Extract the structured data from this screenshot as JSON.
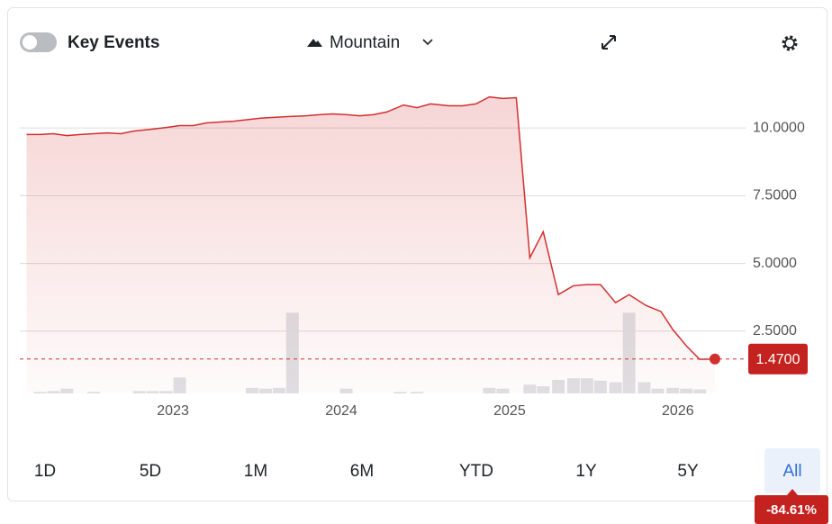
{
  "controls": {
    "toggle_label": "Key Events",
    "chart_style": "Mountain"
  },
  "chart_data": {
    "type": "area",
    "color": "#d32f2f",
    "x": [
      2022.13,
      2022.21,
      2022.29,
      2022.37,
      2022.45,
      2022.53,
      2022.61,
      2022.69,
      2022.77,
      2022.88,
      2022.96,
      2023.04,
      2023.12,
      2023.2,
      2023.36,
      2023.52,
      2023.68,
      2023.79,
      2023.87,
      2023.95,
      2024.03,
      2024.11,
      2024.19,
      2024.27,
      2024.37,
      2024.45,
      2024.53,
      2024.64,
      2024.72,
      2024.8,
      2024.88,
      2024.96,
      2025.04,
      2025.12,
      2025.2,
      2025.29,
      2025.38,
      2025.46,
      2025.54,
      2025.63,
      2025.71,
      2025.81,
      2025.9,
      2025.97,
      2026.05,
      2026.13,
      2026.22
    ],
    "values": [
      9.76,
      9.76,
      9.79,
      9.72,
      9.76,
      9.79,
      9.82,
      9.79,
      9.89,
      9.96,
      10.02,
      10.09,
      10.09,
      10.19,
      10.25,
      10.36,
      10.42,
      10.45,
      10.49,
      10.52,
      10.49,
      10.45,
      10.49,
      10.59,
      10.85,
      10.75,
      10.89,
      10.82,
      10.82,
      10.89,
      11.15,
      11.09,
      11.12,
      5.21,
      6.17,
      3.85,
      4.18,
      4.22,
      4.22,
      3.55,
      3.85,
      3.45,
      3.22,
      2.56,
      1.96,
      1.46,
      1.47
    ],
    "xlim": [
      2022.09,
      2026.37
    ],
    "xticks": [
      2023,
      2024,
      2025,
      2026
    ],
    "ylim": [
      0.2,
      12
    ],
    "yticks": [
      {
        "value": 2.5,
        "label": "2.5000"
      },
      {
        "value": 5,
        "label": "5.0000"
      },
      {
        "value": 7.5,
        "label": "7.5000"
      },
      {
        "value": 10,
        "label": "10.0000"
      }
    ],
    "grid": true,
    "last_value": {
      "value": 1.47,
      "label": "1.4700"
    },
    "volume": {
      "color": "#dfe1e5",
      "y2lim": [
        0,
        400
      ],
      "x": [
        2022.21,
        2022.29,
        2022.37,
        2022.53,
        2022.8,
        2022.88,
        2022.96,
        2023.04,
        2023.47,
        2023.55,
        2023.63,
        2023.71,
        2024.03,
        2024.35,
        2024.45,
        2024.88,
        2024.96,
        2025.12,
        2025.2,
        2025.29,
        2025.38,
        2025.46,
        2025.54,
        2025.63,
        2025.71,
        2025.8,
        2025.88,
        2025.97,
        2026.05,
        2026.13
      ],
      "values": [
        2,
        3,
        6,
        2,
        3,
        3,
        3,
        20,
        7,
        6,
        7,
        101,
        6,
        2,
        2,
        7,
        6,
        11,
        9,
        17,
        19,
        19,
        16,
        14,
        101,
        14,
        6,
        7,
        6,
        5
      ]
    }
  },
  "ranges": [
    "1D",
    "5D",
    "1M",
    "6M",
    "YTD",
    "1Y",
    "5Y",
    "All"
  ],
  "selected_range_index": 7,
  "change": "-84.61%"
}
